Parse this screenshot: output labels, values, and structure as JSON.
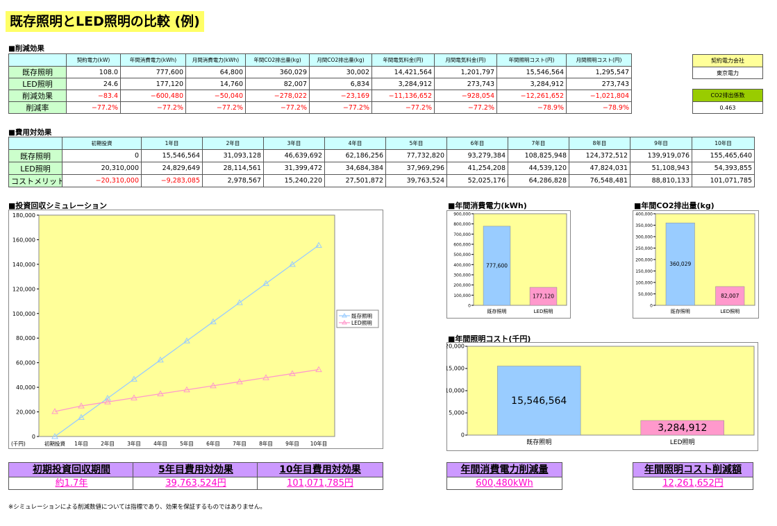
{
  "title": "既存照明とLED照明の比較 (例)",
  "reduction": {
    "section": "■削減効果",
    "headers": [
      "契約電力(kW)",
      "年間消費電力(kWh)",
      "月間消費電力(kWh)",
      "年間CO2排出量(kg)",
      "月間CO2排出量(kg)",
      "年間電気料金(円)",
      "月間電気料金(円)",
      "年間照明コスト(円)",
      "月間照明コスト(円)"
    ],
    "rows": [
      {
        "label": "既存照明",
        "values": [
          "108.0",
          "777,600",
          "64,800",
          "360,029",
          "30,002",
          "14,421,564",
          "1,201,797",
          "15,546,564",
          "1,295,547"
        ]
      },
      {
        "label": "LED照明",
        "values": [
          "24.6",
          "177,120",
          "14,760",
          "82,007",
          "6,834",
          "3,284,912",
          "273,743",
          "3,284,912",
          "273,743"
        ]
      },
      {
        "label": "削減効果",
        "values": [
          "−83.4",
          "−600,480",
          "−50,040",
          "−278,022",
          "−23,169",
          "−11,136,652",
          "−928,054",
          "−12,261,652",
          "−1,021,804"
        ]
      },
      {
        "label": "削減率",
        "values": [
          "−77.2%",
          "−77.2%",
          "−77.2%",
          "−77.2%",
          "−77.2%",
          "−77.2%",
          "−77.2%",
          "−78.9%",
          "−78.9%"
        ]
      }
    ]
  },
  "side": {
    "company_label": "契約電力会社",
    "company_value": "東京電力",
    "co2_label": "CO2排出係数",
    "co2_value": "0.463"
  },
  "cost": {
    "section": "■費用対効果",
    "headers": [
      "初期投資",
      "1年目",
      "2年目",
      "3年目",
      "4年目",
      "5年目",
      "6年目",
      "7年目",
      "8年目",
      "9年目",
      "10年目"
    ],
    "rows": [
      {
        "label": "既存照明",
        "values": [
          "0",
          "15,546,564",
          "31,093,128",
          "46,639,692",
          "62,186,256",
          "77,732,820",
          "93,279,384",
          "108,825,948",
          "124,372,512",
          "139,919,076",
          "155,465,640"
        ]
      },
      {
        "label": "LED照明",
        "values": [
          "20,310,000",
          "24,829,649",
          "28,114,561",
          "31,399,472",
          "34,684,384",
          "37,969,296",
          "41,254,208",
          "44,539,120",
          "47,824,031",
          "51,108,943",
          "54,393,855"
        ]
      },
      {
        "label": "コストメリット",
        "values": [
          "−20,310,000",
          "−9,283,085",
          "2,978,567",
          "15,240,220",
          "27,501,872",
          "39,763,524",
          "52,025,176",
          "64,286,828",
          "76,548,481",
          "88,810,133",
          "101,071,785"
        ]
      }
    ]
  },
  "charts": {
    "payback_title": "■投資回収シミュレーション",
    "kwh_title": "■年間消費電力(kWh)",
    "co2_title": "■年間CO2排出量(kg)",
    "cost_title": "■年間照明コスト(千円)"
  },
  "chart_data": [
    {
      "type": "line",
      "y_unit": "(千円)",
      "categories": [
        "初期投資",
        "1年目",
        "2年目",
        "3年目",
        "4年目",
        "5年目",
        "6年目",
        "7年目",
        "8年目",
        "9年目",
        "10年目"
      ],
      "ylim": [
        0,
        180000
      ],
      "yticks": [
        "0",
        "20,000",
        "40,000",
        "60,000",
        "80,000",
        "100,000",
        "120,000",
        "140,000",
        "160,000",
        "180,000"
      ],
      "legend": "right",
      "series": [
        {
          "name": "既存照明",
          "color": "#99ccff",
          "values": [
            0,
            15547,
            31093,
            46640,
            62186,
            77733,
            93279,
            108826,
            124373,
            139919,
            155466
          ]
        },
        {
          "name": "LED照明",
          "color": "#ff99cc",
          "values": [
            20310,
            24830,
            28115,
            31399,
            34684,
            37969,
            41254,
            44539,
            47824,
            51109,
            54394
          ]
        }
      ]
    },
    {
      "type": "bar",
      "categories": [
        "既存照明",
        "LED照明"
      ],
      "values": [
        777600,
        177120
      ],
      "data_labels": [
        "777,600",
        "177,120"
      ],
      "colors": [
        "#99ccff",
        "#ff99cc"
      ],
      "ylim": [
        0,
        900000
      ],
      "yticks": [
        "0",
        "100,000",
        "200,000",
        "300,000",
        "400,000",
        "500,000",
        "600,000",
        "700,000",
        "800,000",
        "900,000"
      ]
    },
    {
      "type": "bar",
      "categories": [
        "既存照明",
        "LED照明"
      ],
      "values": [
        360029,
        82007
      ],
      "data_labels": [
        "360,029",
        "82,007"
      ],
      "colors": [
        "#99ccff",
        "#ff99cc"
      ],
      "ylim": [
        0,
        400000
      ],
      "yticks": [
        "0",
        "50,000",
        "100,000",
        "150,000",
        "200,000",
        "250,000",
        "300,000",
        "350,000",
        "400,000"
      ]
    },
    {
      "type": "bar",
      "categories": [
        "既存照明",
        "LED照明"
      ],
      "values": [
        15546.564,
        3284.912
      ],
      "data_labels": [
        "15,546,564",
        "3,284,912"
      ],
      "colors": [
        "#99ccff",
        "#ff99cc"
      ],
      "ylim": [
        0,
        20000
      ],
      "yticks": [
        "0",
        "5,000",
        "10,000",
        "15,000",
        "20,000"
      ]
    }
  ],
  "summary": [
    {
      "label": "初期投資回収期間",
      "value": "約1.7年"
    },
    {
      "label": "5年目費用対効果",
      "value": "39,763,524円"
    },
    {
      "label": "10年目費用対効果",
      "value": "101,071,785円"
    },
    {
      "label": "年間消費電力削減量",
      "value": "600,480kWh"
    },
    {
      "label": "年間照明コスト削減額",
      "value": "12,261,652円"
    }
  ],
  "note": "※シミュレーションによる削減数値については指標であり、効果を保証するものではありません。"
}
